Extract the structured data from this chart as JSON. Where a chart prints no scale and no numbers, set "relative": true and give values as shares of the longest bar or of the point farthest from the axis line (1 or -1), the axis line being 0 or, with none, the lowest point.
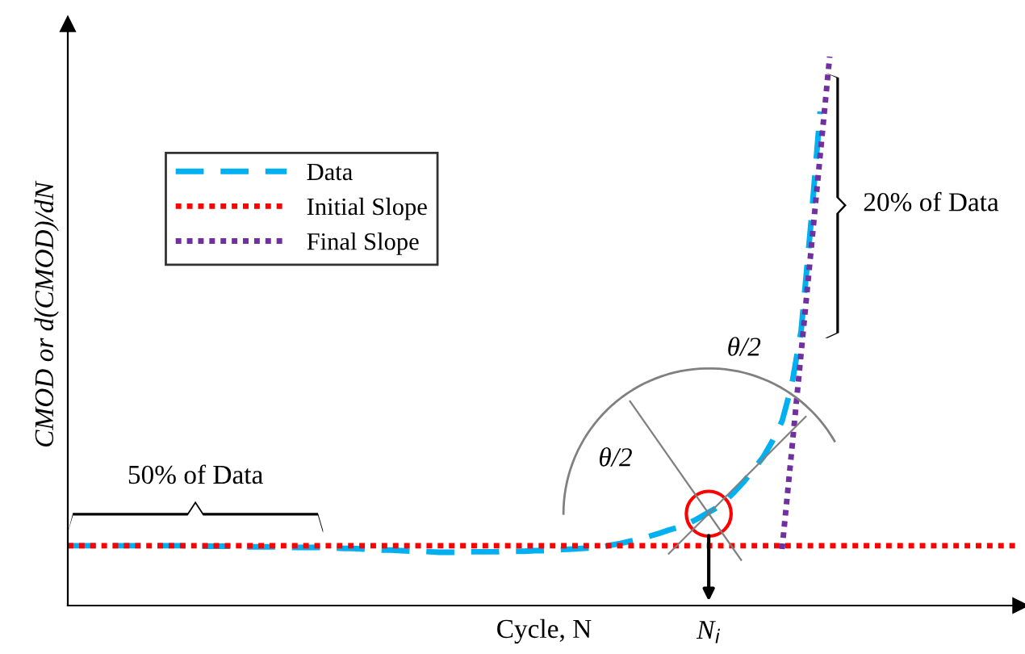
{
  "chart_data": {
    "type": "line",
    "relative": true,
    "xlabel": "Cycle, N",
    "ylabel": "CMOD or d(CMOD)/dN",
    "tick_labels": false,
    "legend": "top left",
    "categories": [
      null,
      null,
      null,
      null,
      null,
      null,
      null,
      null,
      null,
      null,
      null,
      null,
      null,
      null,
      null,
      null,
      null,
      null,
      null,
      null,
      null,
      null,
      null,
      null,
      null,
      null,
      null,
      null,
      null,
      null,
      null,
      null,
      null,
      null,
      null,
      null,
      null,
      null,
      null,
      null,
      null,
      null,
      null,
      null,
      null,
      null,
      null,
      null,
      null,
      null,
      null,
      null,
      null,
      null,
      null,
      null,
      null,
      null,
      null,
      null,
      null,
      null,
      null,
      null,
      null,
      null,
      null,
      null,
      null,
      null,
      null,
      null,
      null,
      null,
      null,
      null,
      null,
      null,
      null,
      null,
      null,
      null,
      null,
      null,
      null,
      null,
      null,
      null,
      null,
      null,
      null,
      null,
      null,
      null,
      null,
      null,
      null,
      null,
      null,
      null,
      null
    ],
    "series": [
      {
        "name": "Data",
        "color": "#00b0f0",
        "line_style": "dashed",
        "values": [
          0.109,
          0.109,
          0.109,
          0.109,
          0.109,
          0.109,
          0.109,
          0.109,
          0.109,
          0.109,
          0.109,
          0.109,
          0.109,
          0.108,
          0.108,
          0.108,
          0.108,
          0.108,
          0.107,
          0.107,
          0.107,
          0.107,
          0.107,
          0.106,
          0.106,
          0.106,
          0.106,
          0.106,
          0.105,
          0.104,
          0.104,
          0.103,
          0.102,
          0.101,
          0.101,
          0.1,
          0.099,
          0.099,
          0.098,
          0.097,
          0.097,
          0.097,
          0.098,
          0.098,
          0.098,
          0.098,
          0.099,
          0.099,
          0.099,
          0.1,
          0.1,
          0.101,
          0.102,
          0.103,
          0.104,
          0.105,
          0.106,
          0.11,
          0.113,
          0.117,
          0.121,
          0.126,
          0.131,
          0.137,
          0.142,
          0.148,
          0.157,
          0.167,
          0.177,
          0.19,
          0.207,
          0.226,
          0.248,
          0.27,
          0.3,
          0.336,
          0.4,
          0.5,
          0.69,
          0.9,
          null,
          null,
          null,
          null,
          null,
          null,
          null,
          null,
          null,
          null,
          null,
          null,
          null,
          null,
          null,
          null,
          null,
          null,
          null,
          null,
          null
        ]
      },
      {
        "name": "Initial Slope",
        "color": "#ff0000",
        "line_style": "dotted",
        "values": [
          0.109,
          0.109,
          0.109,
          0.109,
          0.109,
          0.109,
          0.109,
          0.109,
          0.109,
          0.109,
          0.109,
          0.109,
          0.109,
          0.109,
          0.109,
          0.109,
          0.109,
          0.109,
          0.109,
          0.109,
          0.109,
          0.109,
          0.109,
          0.109,
          0.109,
          0.109,
          0.109,
          0.109,
          0.109,
          0.109,
          0.109,
          0.109,
          0.109,
          0.109,
          0.109,
          0.109,
          0.109,
          0.109,
          0.109,
          0.109,
          0.109,
          0.109,
          0.109,
          0.109,
          0.109,
          0.109,
          0.109,
          0.109,
          0.109,
          0.109,
          0.109,
          0.109,
          0.109,
          0.109,
          0.109,
          0.109,
          0.109,
          0.109,
          0.109,
          0.109,
          0.109,
          0.109,
          0.109,
          0.109,
          0.109,
          0.109,
          0.109,
          0.109,
          0.109,
          0.109,
          0.109,
          0.109,
          0.109,
          0.109,
          0.109,
          0.109,
          0.109,
          0.109,
          0.109,
          0.109,
          0.109,
          0.109,
          0.109,
          0.109,
          0.109,
          0.109,
          0.109,
          0.109,
          0.109,
          0.109,
          0.109,
          0.109,
          0.109,
          0.109,
          0.109,
          0.109,
          0.109,
          0.109,
          0.109,
          0.109,
          0.109
        ]
      },
      {
        "name": "Final Slope",
        "color": "#7030a0",
        "line_style": "dotted",
        "values": [
          null,
          null,
          null,
          null,
          null,
          null,
          null,
          null,
          null,
          null,
          null,
          null,
          null,
          null,
          null,
          null,
          null,
          null,
          null,
          null,
          null,
          null,
          null,
          null,
          null,
          null,
          null,
          null,
          null,
          null,
          null,
          null,
          null,
          null,
          null,
          null,
          null,
          null,
          null,
          null,
          null,
          null,
          null,
          null,
          null,
          null,
          null,
          null,
          null,
          null,
          null,
          null,
          null,
          null,
          null,
          null,
          null,
          null,
          null,
          null,
          null,
          null,
          null,
          null,
          null,
          null,
          null,
          null,
          null,
          null,
          null,
          null,
          null,
          null,
          null,
          0.103,
          0.28,
          0.46,
          0.64,
          0.82,
          1.0,
          null,
          null,
          null,
          null,
          null,
          null,
          null,
          null,
          null,
          null,
          null,
          null,
          null,
          null,
          null,
          null,
          null,
          null,
          null,
          null
        ]
      }
    ],
    "annotations": [
      "50% of Data",
      "20% of Data",
      "θ/2",
      "θ/2",
      "N$_{i}$"
    ]
  }
}
